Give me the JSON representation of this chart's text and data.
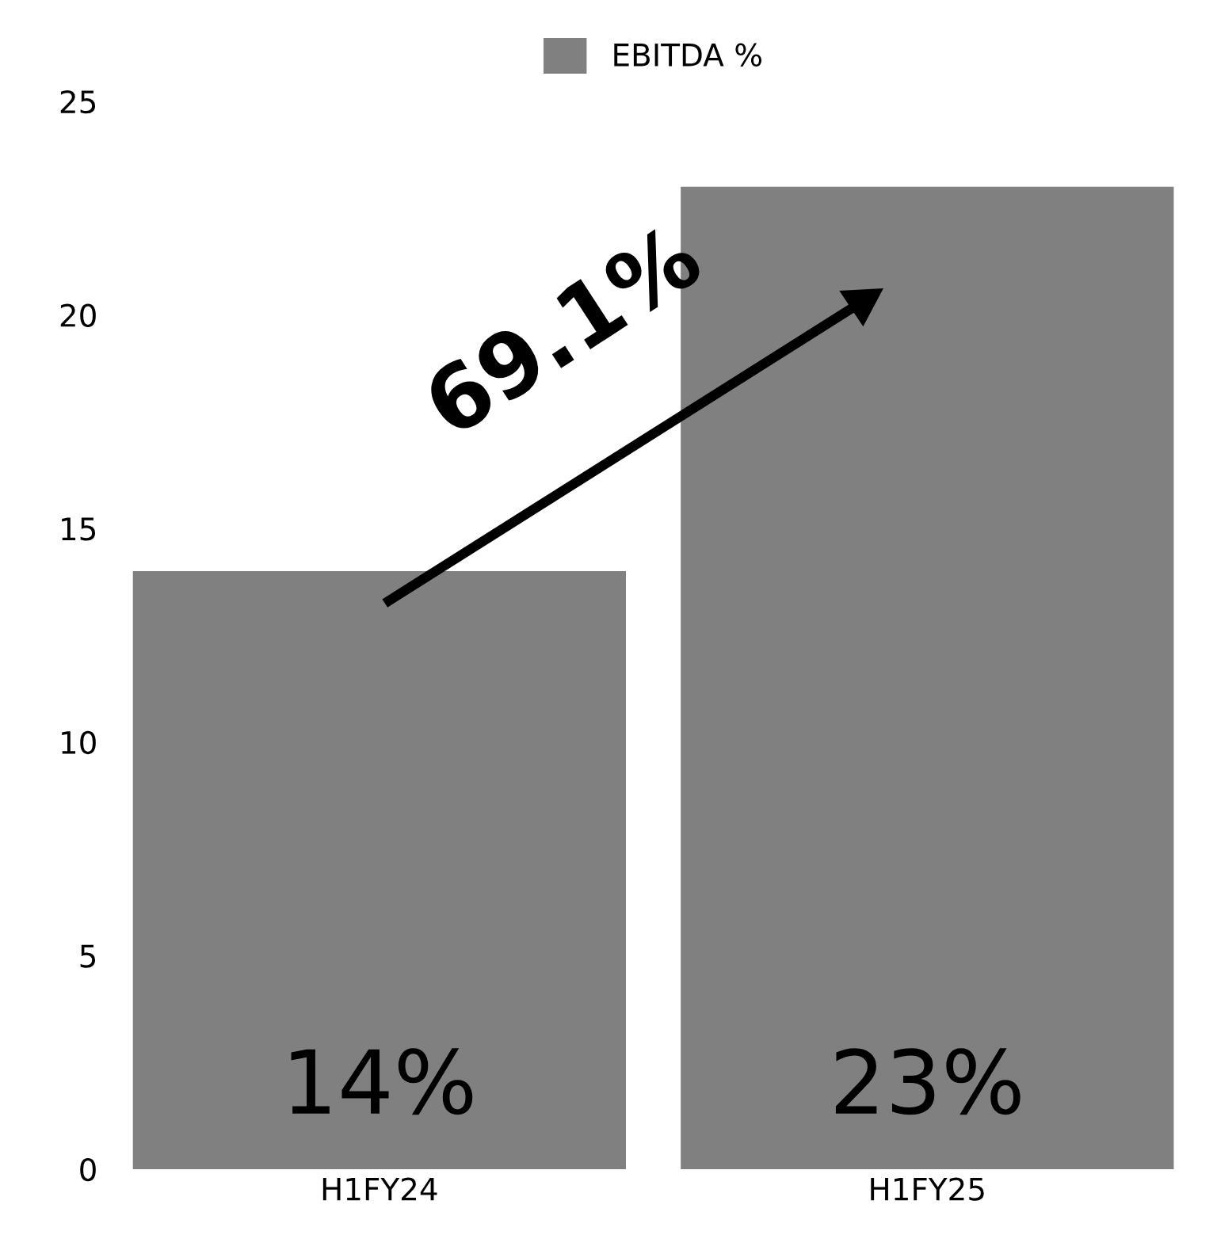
{
  "chart_data": {
    "type": "bar",
    "categories": [
      "H1FY24",
      "H1FY25"
    ],
    "series": [
      {
        "name": "EBITDA %",
        "color": "#808080",
        "values": [
          14,
          23
        ],
        "value_labels": [
          "14%",
          "23%"
        ]
      }
    ],
    "ylim": [
      0,
      25
    ],
    "yticks": [
      0,
      5,
      10,
      15,
      20,
      25
    ],
    "grid": false,
    "legend": "top",
    "annotations": [
      "69.1%"
    ]
  }
}
